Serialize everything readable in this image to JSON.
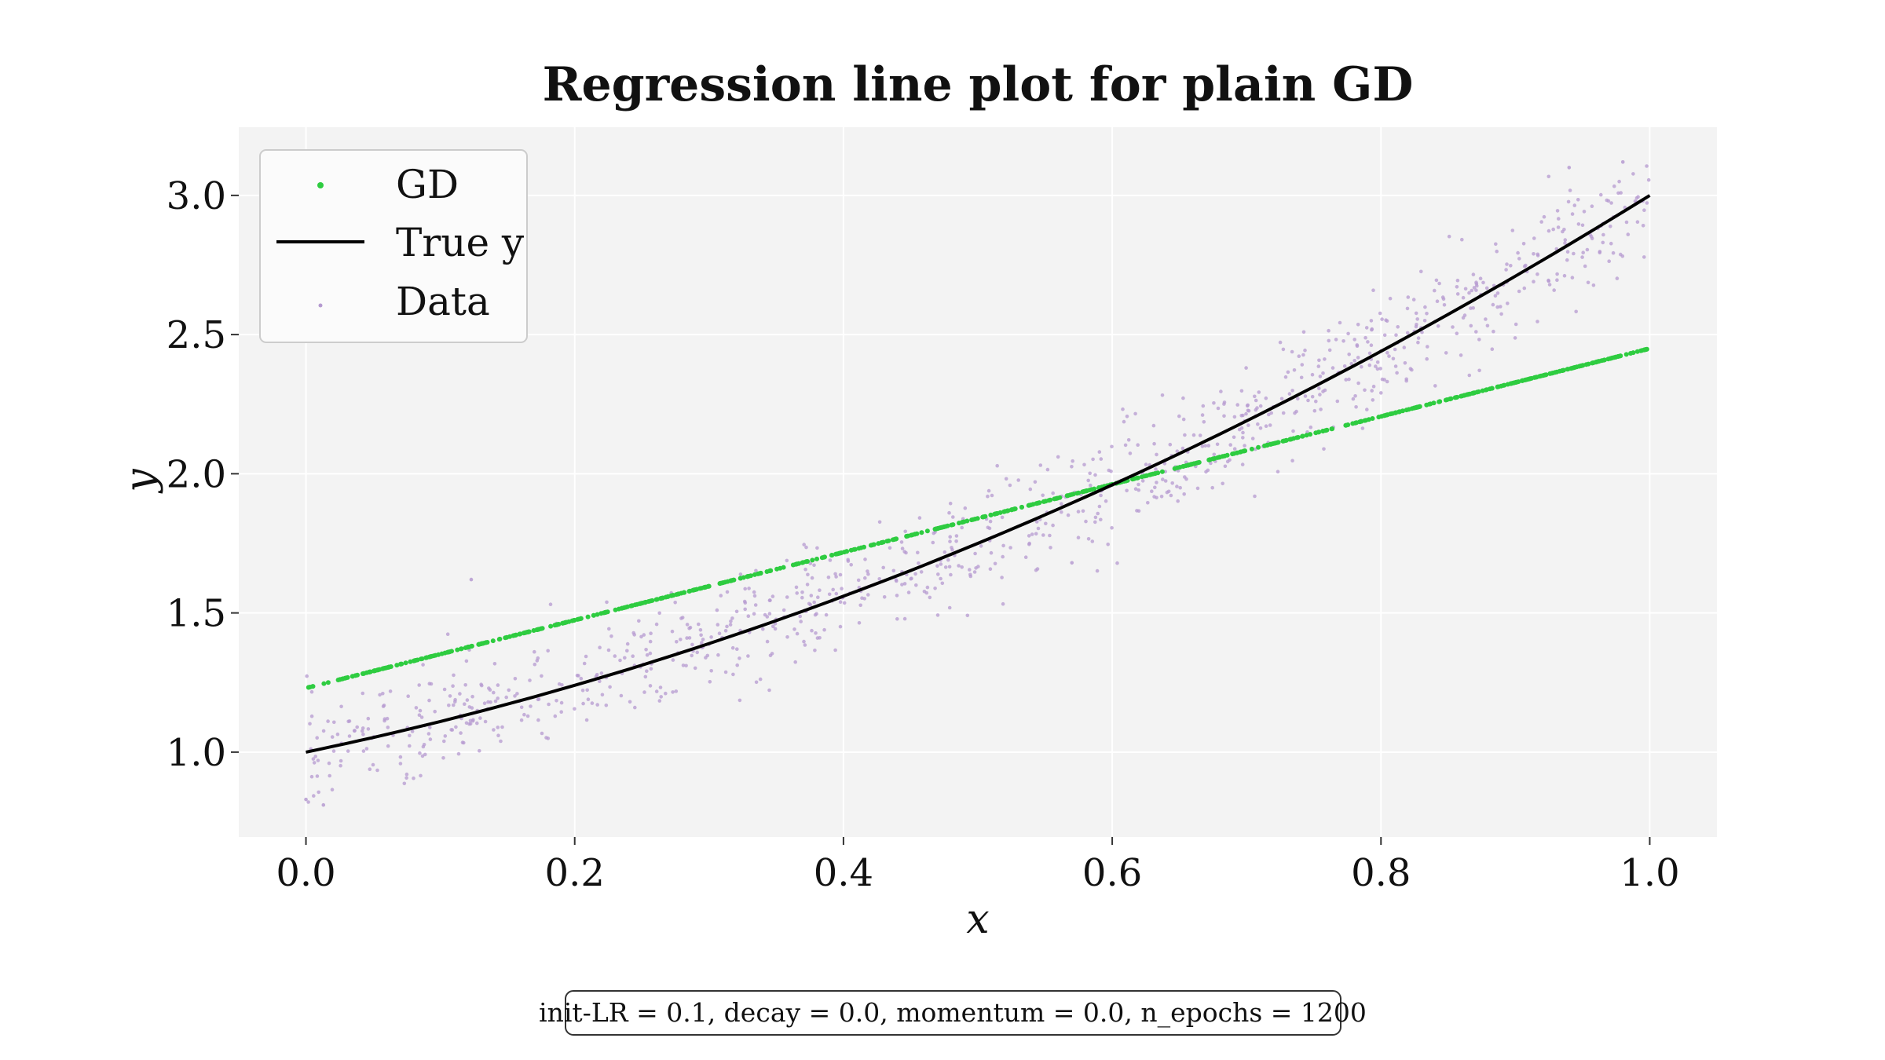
{
  "chart_data": {
    "type": "scatter",
    "title": "Regression line plot for plain GD",
    "xlabel": "x",
    "ylabel": "y",
    "xlim": [
      -0.05,
      1.05
    ],
    "ylim": [
      0.695,
      3.245
    ],
    "x_ticks": [
      "0.0",
      "0.2",
      "0.4",
      "0.6",
      "0.8",
      "1.0"
    ],
    "y_ticks": [
      "1.0",
      "1.5",
      "2.0",
      "2.5",
      "3.0"
    ],
    "grid": true,
    "background_color": "#f3f3f3",
    "legend_position": "upper-left",
    "legend": [
      "GD",
      "True y",
      "Data"
    ],
    "series": [
      {
        "name": "GD",
        "kind": "points",
        "color": "#2ecc40",
        "x_range": [
          0.0,
          1.0
        ],
        "y_range": [
          1.23,
          2.45
        ],
        "model": "linear",
        "intercept": 1.23,
        "slope": 1.22
      },
      {
        "name": "True y",
        "kind": "line",
        "color": "#000000",
        "x_range": [
          0.0,
          1.0
        ],
        "model": "quadratic",
        "coefficients": {
          "c0": 1.0,
          "c1": 1.0,
          "c2": 1.0
        }
      },
      {
        "name": "Data",
        "kind": "points",
        "color": "#b59ad0",
        "x_range": [
          0.0,
          1.0
        ],
        "count": 1000,
        "model": "quadratic_plus_noise",
        "noise_std": 0.1,
        "outliers": [
          {
            "x": 0.123,
            "y": 1.62
          },
          {
            "x": 0.0,
            "y": 0.83
          },
          {
            "x": 0.013,
            "y": 0.81
          },
          {
            "x": 0.94,
            "y": 3.1
          },
          {
            "x": 0.98,
            "y": 3.12
          },
          {
            "x": 0.57,
            "y": 1.68
          }
        ]
      }
    ]
  },
  "annotation": "init-LR = 0.1, decay = 0.0, momentum = 0.0, n_epochs = 1200"
}
